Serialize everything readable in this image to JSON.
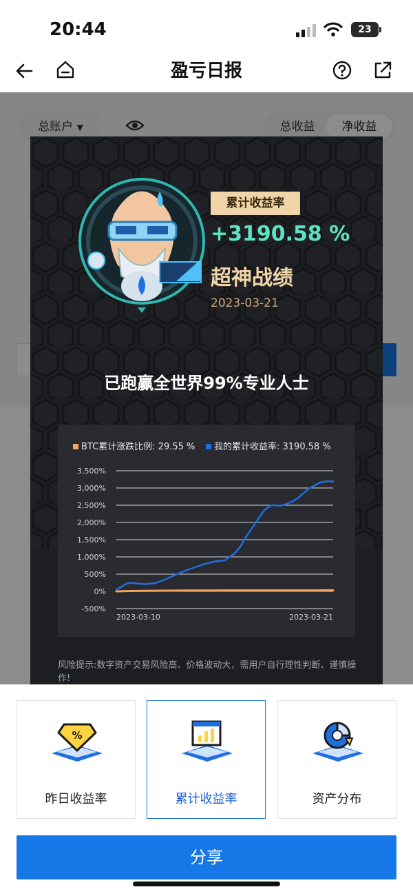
{
  "status_bar": {
    "time": "20:44",
    "battery": "23"
  },
  "nav": {
    "title": "盈亏日报"
  },
  "background_page": {
    "account_dropdown": "总账户",
    "tabs": [
      "总收益",
      "净收益"
    ]
  },
  "modal": {
    "badge": "累计收益率",
    "rate": "+3190.58 %",
    "headline": "超神战绩",
    "date": "2023-03-21",
    "beat_text": "已跑赢全世界99%专业人士",
    "risk_notice": "风险提示:数字资产交易风险高、价格波动大，需用户自行理性判断、谨慎操作!"
  },
  "colors": {
    "accent": "#1677e6",
    "btc": "#f4a460",
    "mine": "#1e6fe0",
    "teal": "#5ee2c3",
    "gold": "#f1d4a8"
  },
  "chart_data": {
    "type": "line",
    "legend": [
      {
        "name": "BTC累计涨跌比例: 29.55 %",
        "color": "#f4a460"
      },
      {
        "name": "我的累计收益率: 3190.58 %",
        "color": "#1e6fe0"
      }
    ],
    "y_ticks": [
      "3,500%",
      "3,000%",
      "2,500%",
      "2,000%",
      "1,500%",
      "1,000%",
      "500%",
      "0%",
      "-500%"
    ],
    "ylim": [
      -500,
      3500
    ],
    "x_labels": [
      "2023-03-10",
      "2023-03-21"
    ],
    "x": [
      0,
      0.3,
      0.5,
      0.8,
      1,
      1.5,
      2,
      2.5,
      3,
      3.5,
      4,
      4.5,
      5,
      5.5,
      6,
      6.3,
      6.6,
      6.9,
      7.2,
      7.5,
      7.8,
      8,
      8.3,
      8.6,
      8.9,
      9.2,
      9.5,
      9.8,
      10,
      10.3,
      10.6,
      11
    ],
    "series": [
      {
        "name": "BTC累计涨跌比例: 29.55 %",
        "values": [
          0,
          5,
          8,
          10,
          12,
          15,
          18,
          20,
          22,
          24,
          25,
          26,
          27,
          28,
          28,
          28,
          29,
          29,
          29,
          29,
          29,
          29,
          29,
          29,
          29,
          29,
          29,
          29,
          29,
          29,
          30,
          30
        ]
      },
      {
        "name": "我的累计收益率: 3190.58 %",
        "values": [
          50,
          150,
          220,
          250,
          230,
          210,
          240,
          350,
          480,
          600,
          700,
          800,
          870,
          900,
          1100,
          1300,
          1600,
          1850,
          2100,
          2350,
          2480,
          2500,
          2480,
          2530,
          2600,
          2700,
          2850,
          3000,
          3050,
          3150,
          3190,
          3190
        ]
      }
    ]
  },
  "bottom_cards": [
    {
      "label": "昨日收益率",
      "active": false
    },
    {
      "label": "累计收益率",
      "active": true
    },
    {
      "label": "资产分布",
      "active": false
    }
  ],
  "share_button": "分享"
}
